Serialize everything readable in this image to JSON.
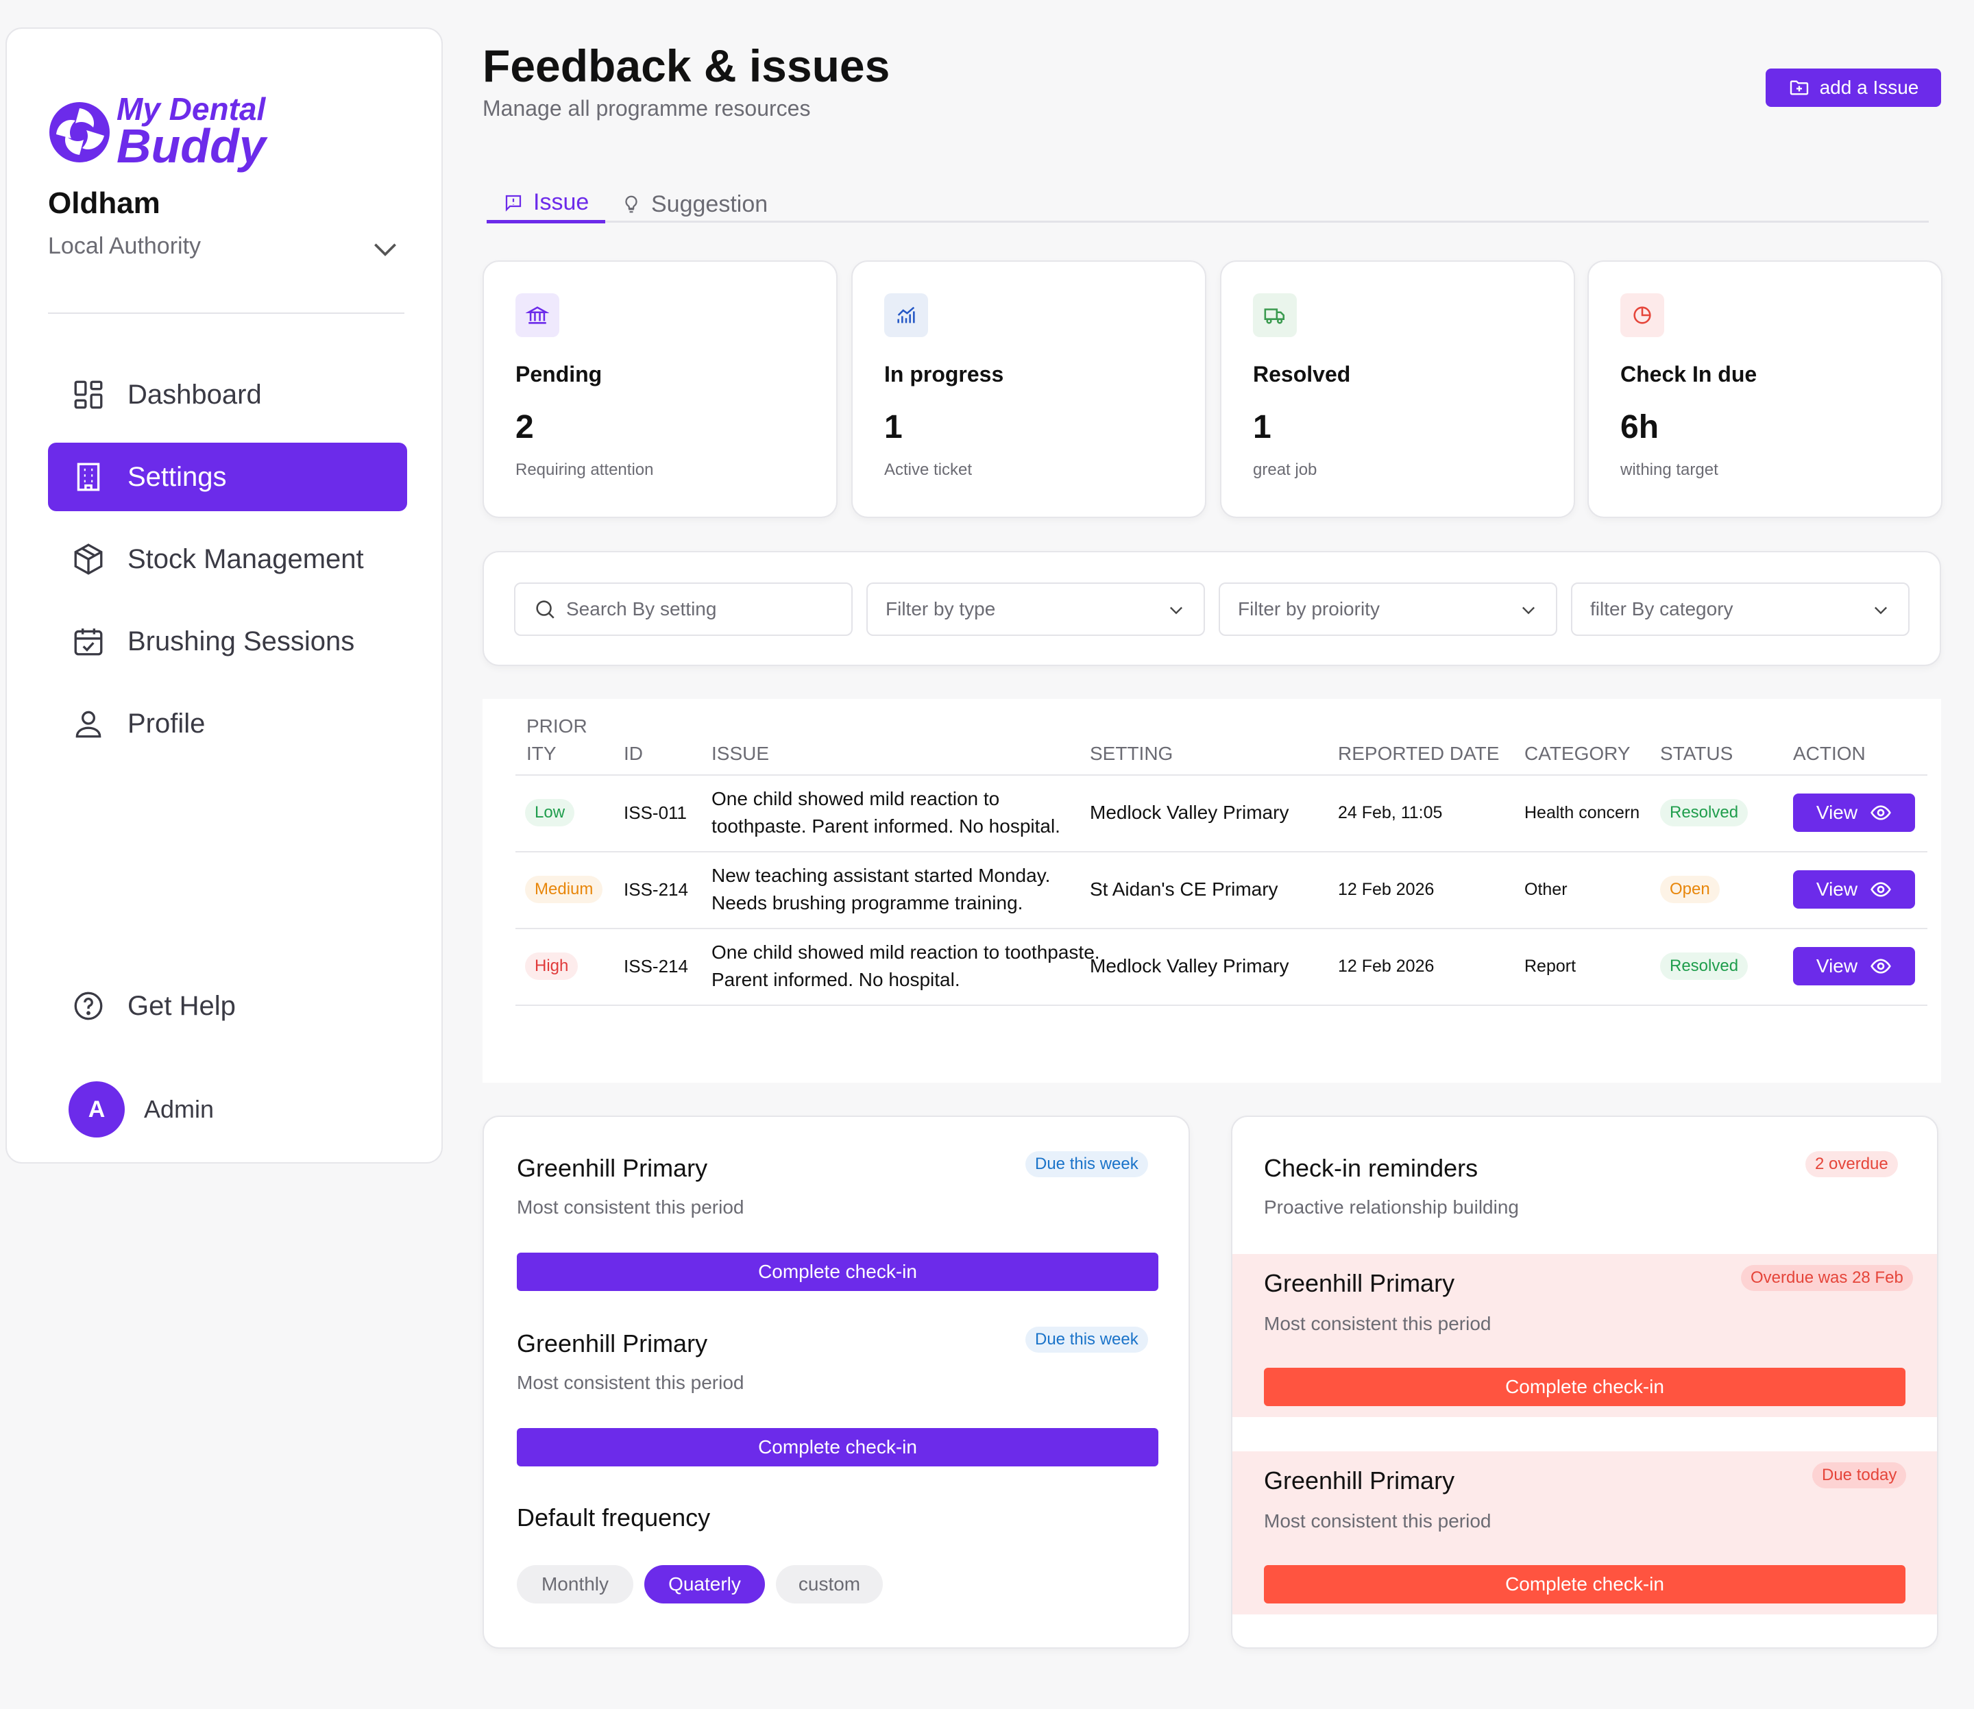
{
  "brand": {
    "logo_line1": "My Dental",
    "logo_line2": "Buddy",
    "accent": "#6c2bea",
    "danger": "#ff5440"
  },
  "org": {
    "name": "Oldham",
    "role": "Local Authority"
  },
  "nav": [
    {
      "label": "Dashboard",
      "icon": "dashboard-icon"
    },
    {
      "label": "Settings",
      "icon": "building-icon",
      "active": true
    },
    {
      "label": "Stock Management",
      "icon": "box-icon"
    },
    {
      "label": "Brushing Sessions",
      "icon": "calendar-icon"
    },
    {
      "label": "Profile",
      "icon": "user-icon"
    }
  ],
  "help": {
    "label": "Get Help"
  },
  "user": {
    "initial": "A",
    "name": "Admin"
  },
  "header": {
    "title": "Feedback & issues",
    "subtitle": "Manage all programme resources",
    "add_button": "add a Issue"
  },
  "tabs": [
    {
      "label": "Issue",
      "active": true
    },
    {
      "label": "Suggestion"
    }
  ],
  "stats": [
    {
      "label": "Pending",
      "value": "2",
      "note": "Requiring attention",
      "icon": "bank-icon",
      "icon_bg": "#efe9fd",
      "icon_color": "#6c2bea"
    },
    {
      "label": "In progress",
      "value": "1",
      "note": "Active ticket",
      "icon": "chart-icon",
      "icon_bg": "#e8eef8",
      "icon_color": "#2457c5"
    },
    {
      "label": "Resolved",
      "value": "1",
      "note": "great job",
      "icon": "truck-icon",
      "icon_bg": "#eaf5ec",
      "icon_color": "#3a9a4f"
    },
    {
      "label": "Check In due",
      "value": "6h",
      "note": "withing target",
      "icon": "pie-icon",
      "icon_bg": "#fdeaea",
      "icon_color": "#e5453a"
    }
  ],
  "filters": {
    "search_placeholder": "Search By setting",
    "type": "Filter by type",
    "priority": "Filter by proiority",
    "category": "filter By category"
  },
  "table": {
    "headers": [
      "PRIOR ITY",
      "ID",
      "ISSUE",
      "SETTING",
      "REPORTED DATE",
      "CATEGORY",
      "STATUS",
      "ACTION"
    ],
    "header_priority_line1": "PRIOR",
    "header_priority_line2": "ITY",
    "rows": [
      {
        "priority": "Low",
        "id": "ISS-011",
        "issue_l1": "One child showed mild reaction to",
        "issue_l2": "toothpaste. Parent informed. No hospital.",
        "setting": "Medlock Valley Primary",
        "date": "24 Feb, 11:05",
        "category": "Health concern",
        "status": "Resolved",
        "action": "View"
      },
      {
        "priority": "Medium",
        "id": "ISS-214",
        "issue_l1": "New teaching assistant started Monday.",
        "issue_l2": "Needs brushing programme training.",
        "setting": "St Aidan's CE Primary",
        "date": "12 Feb 2026",
        "category": "Other",
        "status": "Open",
        "action": "View"
      },
      {
        "priority": "High",
        "id": "ISS-214",
        "issue_l1": "One child showed mild reaction to toothpaste.",
        "issue_l2": "Parent informed. No hospital.",
        "setting": "Medlock Valley Primary",
        "date": "12 Feb 2026",
        "category": "Report",
        "status": "Resolved",
        "action": "View"
      }
    ]
  },
  "upcoming": {
    "items": [
      {
        "title": "Greenhill Primary",
        "sub": "Most consistent this period",
        "badge": "Due this week",
        "button": "Complete check-in"
      },
      {
        "title": "Greenhill Primary",
        "sub": "Most consistent this period",
        "badge": "Due this week",
        "button": "Complete check-in"
      }
    ],
    "frequency": {
      "title": "Default frequency",
      "options": [
        "Monthly",
        "Quaterly",
        "custom"
      ],
      "selected": "Quaterly"
    }
  },
  "reminders": {
    "title": "Check-in reminders",
    "sub": "Proactive relationship building",
    "badge": "2 overdue",
    "items": [
      {
        "title": "Greenhill Primary",
        "sub": "Most consistent this period",
        "badge": "Overdue was 28 Feb",
        "button": "Complete check-in"
      },
      {
        "title": "Greenhill Primary",
        "sub": "Most consistent this period",
        "badge": "Due today",
        "button": "Complete check-in"
      }
    ]
  }
}
